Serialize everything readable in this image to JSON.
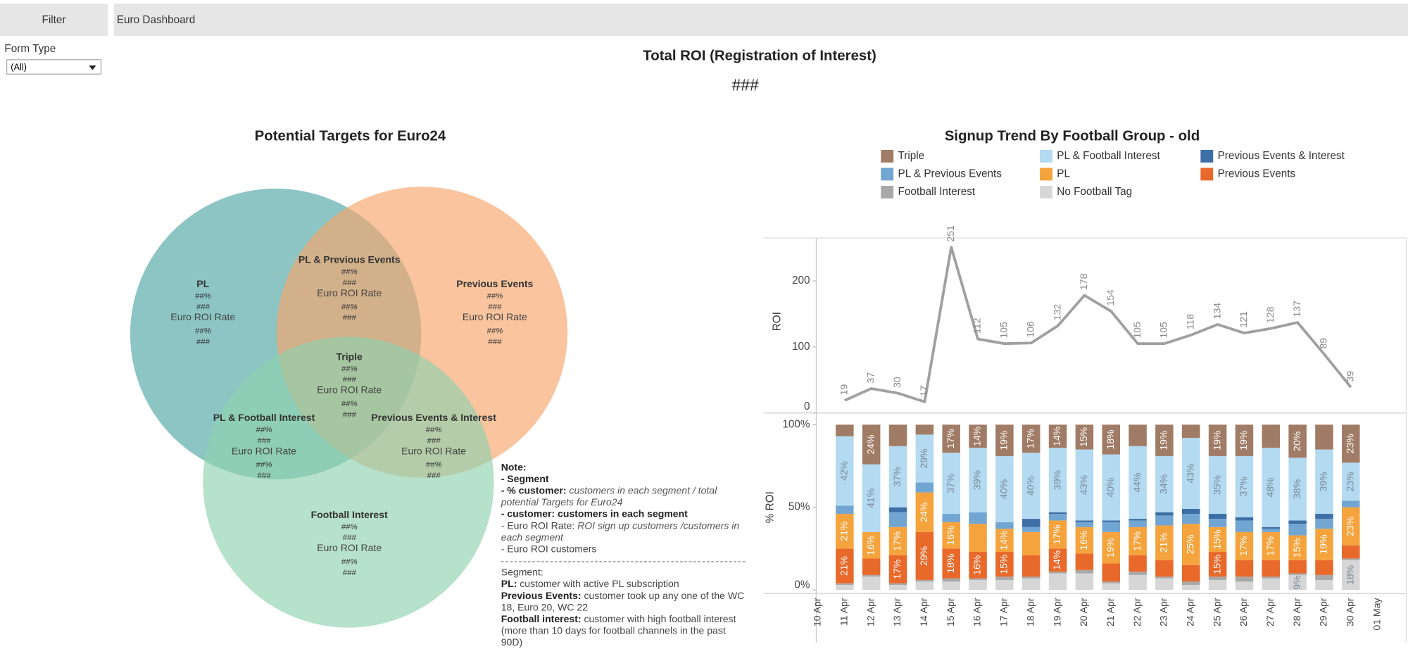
{
  "header": {
    "filter_tab": "Filter",
    "dashboard_tab": "Euro Dashboard"
  },
  "filter": {
    "label": "Form Type",
    "selected": "(All)"
  },
  "summary": {
    "title": "Total ROI (Registration of Interest)",
    "value": "###"
  },
  "venn": {
    "title": "Potential Targets for Euro24",
    "regions": [
      {
        "label": "PL",
        "lines": [
          "##%",
          "###",
          "Euro ROI Rate",
          "##%",
          "###"
        ]
      },
      {
        "label": "PL & Previous Events",
        "lines": [
          "##%",
          "###",
          "Euro ROI Rate",
          "##%",
          "###"
        ]
      },
      {
        "label": "Previous Events",
        "lines": [
          "##%",
          "###",
          "Euro ROI Rate",
          "##%",
          "###"
        ]
      },
      {
        "label": "Triple",
        "lines": [
          "##%",
          "###",
          "Euro ROI Rate",
          "##%",
          "###"
        ]
      },
      {
        "label": "PL & Football Interest",
        "lines": [
          "##%",
          "###",
          "Euro ROI Rate",
          "##%",
          "###"
        ]
      },
      {
        "label": "Previous Events & Interest",
        "lines": [
          "##%",
          "###",
          "Euro ROI Rate",
          "##%",
          "###"
        ]
      },
      {
        "label": "Football Interest",
        "lines": [
          "##%",
          "###",
          "Euro ROI Rate",
          "##%",
          "###"
        ]
      }
    ]
  },
  "note": {
    "definitions": [
      [
        {
          "text": "Note:",
          "style": "bold"
        }
      ],
      [
        {
          "text": "- Segment",
          "style": "bold"
        }
      ],
      [
        {
          "text": "- % customer:",
          "style": "bold"
        },
        {
          "text": " customers in each segment / total potential Targets for Euro24",
          "style": "italic"
        }
      ],
      [
        {
          "text": "- customer: customers in each segment",
          "style": "bold"
        }
      ],
      [
        {
          "text": "- Euro ROI Rate:",
          "style": "normal"
        },
        {
          "text": " ROI sign up customers /customers in each segment",
          "style": "italic"
        }
      ],
      [
        {
          "text": "- Euro ROI customers",
          "style": "normal"
        }
      ]
    ],
    "segments": [
      [
        {
          "text": "Segment:",
          "style": "normal"
        }
      ],
      [
        {
          "text": "PL:",
          "style": "bold"
        },
        {
          "text": " customer with active PL subscription",
          "style": "normal"
        }
      ],
      [
        {
          "text": "Previous Events:",
          "style": "bold"
        },
        {
          "text": " customer took up any one of the WC 18, Euro 20, WC 22",
          "style": "normal"
        }
      ],
      [
        {
          "text": "Football interest:",
          "style": "bold"
        },
        {
          "text": " customer with high football interest (more than 10 days for football channels in the past 90D)",
          "style": "normal"
        }
      ]
    ]
  },
  "chart_data": [
    {
      "type": "line",
      "title": "Signup Trend By Football Group - old",
      "ylabel": "ROI",
      "color": "#a0a0a0",
      "values": [
        null,
        19,
        37,
        30,
        17,
        251,
        112,
        105,
        106,
        132,
        178,
        154,
        105,
        105,
        118,
        134,
        121,
        128,
        137,
        89,
        39,
        null
      ],
      "ylim": [
        0,
        265
      ],
      "yticks": [
        0,
        100,
        200
      ]
    },
    {
      "type": "bar",
      "stacked": true,
      "ylabel": "% ROI",
      "categories": [
        "10 Apr",
        "11 Apr",
        "12 Apr",
        "13 Apr",
        "14 Apr",
        "15 Apr",
        "16 Apr",
        "17 Apr",
        "18 Apr",
        "19 Apr",
        "20 Apr",
        "21 Apr",
        "22 Apr",
        "23 Apr",
        "24 Apr",
        "25 Apr",
        "26 Apr",
        "27 Apr",
        "28 Apr",
        "29 Apr",
        "30 Apr",
        "01 May"
      ],
      "ylim": [
        0,
        100
      ],
      "yticks": [
        {
          "value": 0,
          "label": "0%"
        },
        {
          "value": 50,
          "label": "50%"
        },
        {
          "value": 100,
          "label": "100%"
        }
      ],
      "series": [
        {
          "name": "Triple",
          "color": "#a07b65",
          "values": [
            null,
            7,
            24,
            13,
            6,
            17,
            14,
            19,
            17,
            14,
            15,
            18,
            13,
            19,
            8,
            19,
            19,
            14,
            20,
            15,
            23,
            null
          ],
          "value_labels": [
            null,
            null,
            "24%",
            null,
            null,
            "17%",
            "14%",
            "19%",
            "17%",
            "14%",
            "15%",
            "18%",
            null,
            "19%",
            null,
            "19%",
            "19%",
            null,
            "20%",
            null,
            "23%",
            null
          ]
        },
        {
          "name": "PL & Football Interest",
          "color": "#b3daf0",
          "values": [
            null,
            42,
            41,
            37,
            29,
            37,
            39,
            40,
            40,
            39,
            43,
            40,
            44,
            34,
            43,
            35,
            37,
            48,
            38,
            39,
            23,
            null
          ],
          "value_labels": [
            null,
            "42%",
            "41%",
            "37%",
            "29%",
            "37%",
            "39%",
            "40%",
            "40%",
            "39%",
            "43%",
            "40%",
            "44%",
            "34%",
            "43%",
            "35%",
            "37%",
            "48%",
            "38%",
            "39%",
            "23%",
            null
          ]
        },
        {
          "name": "Previous Events & Interest",
          "color": "#3d6ea6",
          "values": [
            null,
            0,
            0,
            3,
            0,
            0,
            0,
            0,
            5,
            1,
            1,
            1,
            1,
            2,
            3,
            3,
            2,
            1,
            2,
            3,
            0,
            null
          ]
        },
        {
          "name": "PL & Previous Events",
          "color": "#72a6d2",
          "values": [
            null,
            5,
            0,
            9,
            6,
            5,
            7,
            4,
            3,
            4,
            3,
            6,
            4,
            6,
            6,
            5,
            7,
            2,
            7,
            6,
            4,
            null
          ]
        },
        {
          "name": "PL",
          "color": "#f5a33c",
          "values": [
            null,
            21,
            16,
            17,
            24,
            16,
            17,
            14,
            14,
            17,
            16,
            19,
            17,
            21,
            25,
            15,
            17,
            17,
            15,
            19,
            23,
            null
          ],
          "value_labels": [
            null,
            "21%",
            "16%",
            "17%",
            "24%",
            "16%",
            null,
            "14%",
            null,
            "17%",
            "16%",
            "19%",
            "17%",
            "21%",
            "25%",
            "15%",
            "17%",
            "17%",
            "15%",
            "19%",
            "23%",
            null
          ]
        },
        {
          "name": "Previous Events",
          "color": "#e8692a",
          "values": [
            null,
            21,
            10,
            17,
            29,
            18,
            16,
            15,
            13,
            14,
            10,
            11,
            10,
            10,
            10,
            15,
            10,
            10,
            8,
            9,
            8,
            null
          ],
          "value_labels": [
            null,
            "21%",
            null,
            "17%",
            "29%",
            "18%",
            "16%",
            "15%",
            null,
            "14%",
            null,
            null,
            null,
            null,
            null,
            "15%",
            null,
            null,
            null,
            null,
            null,
            null
          ]
        },
        {
          "name": "Football Interest",
          "color": "#a8a8a8",
          "values": [
            null,
            1,
            1,
            1,
            1,
            2,
            1,
            2,
            1,
            1,
            2,
            1,
            2,
            1,
            2,
            2,
            3,
            1,
            1,
            3,
            1,
            null
          ]
        },
        {
          "name": "No Football Tag",
          "color": "#d6d6d6",
          "values": [
            null,
            3,
            8,
            3,
            5,
            5,
            6,
            6,
            7,
            10,
            10,
            4,
            9,
            7,
            3,
            6,
            5,
            7,
            9,
            6,
            18,
            null
          ],
          "value_labels": [
            null,
            null,
            null,
            null,
            null,
            null,
            null,
            null,
            null,
            null,
            null,
            null,
            null,
            null,
            null,
            null,
            null,
            null,
            "9%",
            null,
            "18%",
            null
          ]
        }
      ]
    }
  ]
}
